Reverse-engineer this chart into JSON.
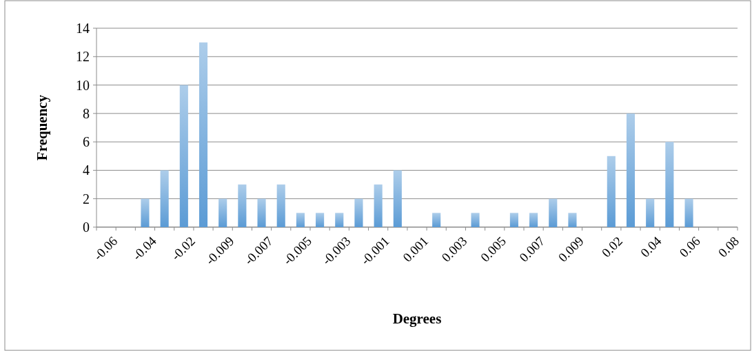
{
  "chart_data": {
    "type": "bar",
    "xlabel": "Degrees",
    "ylabel": "Frequency",
    "categories": [
      "-0.06",
      null,
      "-0.04",
      null,
      "-0.02",
      null,
      "-0.009",
      null,
      "-0.007",
      null,
      "-0.005",
      null,
      "-0.003",
      null,
      "-0.001",
      null,
      "0.001",
      null,
      "0.003",
      null,
      "0.005",
      null,
      "0.007",
      null,
      "0.009",
      null,
      "0.02",
      null,
      "0.04",
      null,
      "0.06",
      null,
      "0.08"
    ],
    "values": [
      0,
      0,
      2,
      4,
      10,
      13,
      2,
      3,
      2,
      3,
      1,
      1,
      1,
      2,
      3,
      4,
      0,
      1,
      0,
      1,
      0,
      1,
      1,
      2,
      1,
      0,
      5,
      8,
      2,
      6,
      2,
      0,
      0
    ],
    "color": "#5b9bd5",
    "ylim": [
      0,
      14
    ],
    "yticks": [
      0,
      2,
      4,
      6,
      8,
      10,
      12,
      14
    ],
    "grid": "y"
  }
}
